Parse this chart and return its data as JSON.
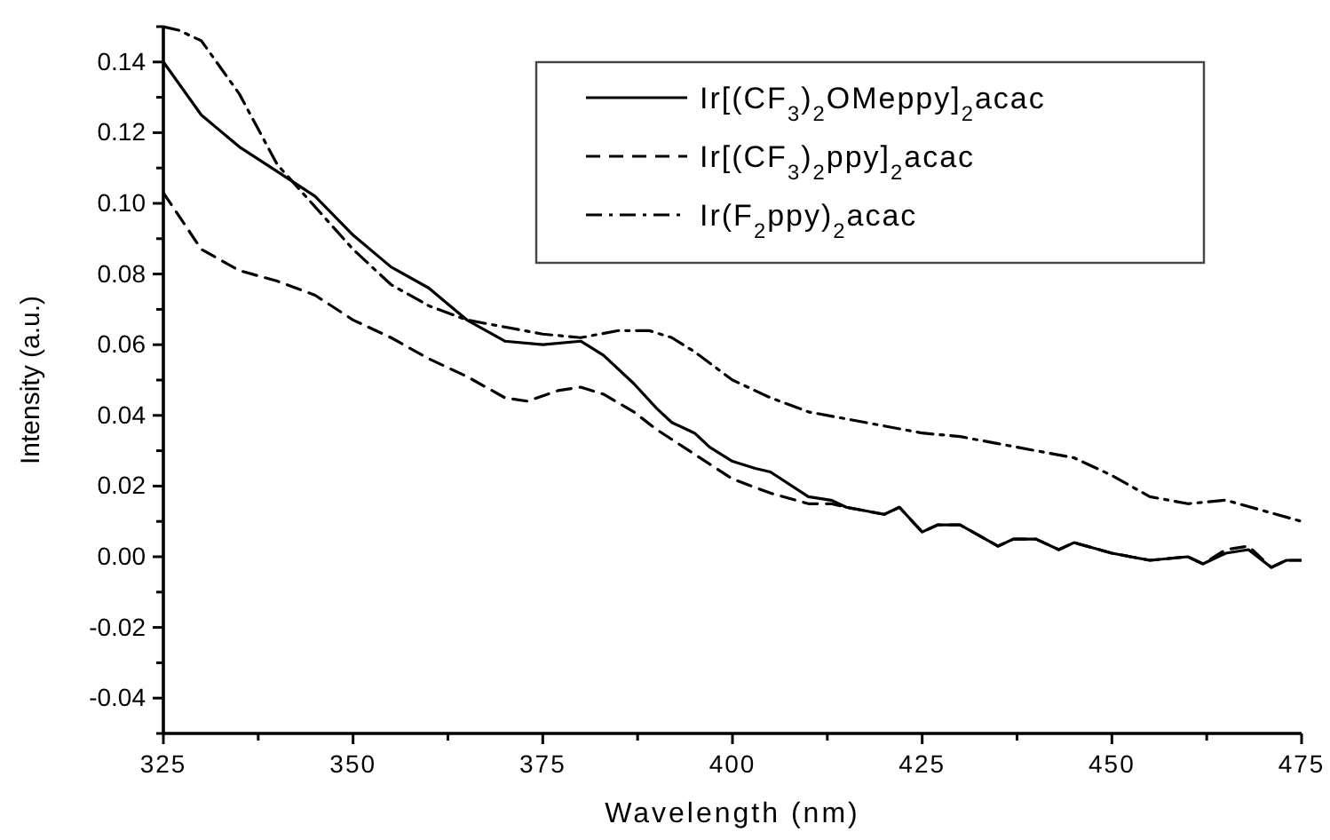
{
  "chart_data": {
    "type": "line",
    "xlabel": "Wavelength (nm)",
    "ylabel": "Intensity (a.u.)",
    "xlim": [
      325,
      475
    ],
    "ylim": [
      -0.05,
      0.15
    ],
    "xticks": [
      {
        "value": 325,
        "label": "325"
      },
      {
        "value": 337.5,
        "label": null
      },
      {
        "value": 350,
        "label": "350"
      },
      {
        "value": 362.5,
        "label": null
      },
      {
        "value": 375,
        "label": "375"
      },
      {
        "value": 387.5,
        "label": null
      },
      {
        "value": 400,
        "label": "400"
      },
      {
        "value": 412.5,
        "label": null
      },
      {
        "value": 425,
        "label": "425"
      },
      {
        "value": 437.5,
        "label": null
      },
      {
        "value": 450,
        "label": "450"
      },
      {
        "value": 462.5,
        "label": null
      },
      {
        "value": 475,
        "label": "475"
      }
    ],
    "yticks": [
      {
        "value": -0.05,
        "label": null
      },
      {
        "value": -0.04,
        "label": "-0.04"
      },
      {
        "value": -0.03,
        "label": null
      },
      {
        "value": -0.02,
        "label": "-0.02"
      },
      {
        "value": -0.01,
        "label": null
      },
      {
        "value": 0,
        "label": "0.00"
      },
      {
        "value": 0.01,
        "label": null
      },
      {
        "value": 0.02,
        "label": "0.02"
      },
      {
        "value": 0.03,
        "label": null
      },
      {
        "value": 0.04,
        "label": "0.04"
      },
      {
        "value": 0.05,
        "label": null
      },
      {
        "value": 0.06,
        "label": "0.06"
      },
      {
        "value": 0.07,
        "label": null
      },
      {
        "value": 0.08,
        "label": "0.08"
      },
      {
        "value": 0.09,
        "label": null
      },
      {
        "value": 0.1,
        "label": "0.10"
      },
      {
        "value": 0.11,
        "label": null
      },
      {
        "value": 0.12,
        "label": "0.12"
      },
      {
        "value": 0.13,
        "label": null
      },
      {
        "value": 0.14,
        "label": "0.14"
      },
      {
        "value": 0.15,
        "label": null
      }
    ],
    "grid": false,
    "legend": "top right",
    "marker": "none",
    "series": [
      {
        "name": "Ir[(CF$_{3}$)$_{2}$OMeppy]$_{2}$acac",
        "color": "#000000",
        "line_style": "solid",
        "x": [
          325,
          330,
          335,
          340,
          345,
          350,
          355,
          360,
          365,
          370,
          375,
          380,
          383,
          387,
          390,
          392,
          395,
          397,
          400,
          403,
          405,
          410,
          413,
          415,
          420,
          422,
          425,
          427,
          430,
          435,
          437,
          440,
          443,
          445,
          450,
          455,
          460,
          462,
          465,
          468,
          471,
          473,
          475
        ],
        "values": [
          0.14,
          0.125,
          0.116,
          0.109,
          0.102,
          0.091,
          0.082,
          0.076,
          0.067,
          0.061,
          0.06,
          0.061,
          0.057,
          0.049,
          0.042,
          0.038,
          0.035,
          0.031,
          0.027,
          0.025,
          0.024,
          0.017,
          0.016,
          0.014,
          0.012,
          0.014,
          0.007,
          0.009,
          0.009,
          0.003,
          0.005,
          0.005,
          0.002,
          0.004,
          0.001,
          -0.001,
          0,
          -0.002,
          0.001,
          0.002,
          -0.003,
          -0.001,
          -0.001
        ]
      },
      {
        "name": "Ir[(CF$_{3}$)$_{2}$ppy]$_{2}$acac",
        "color": "#000000",
        "line_style": "dashed",
        "x": [
          325,
          330,
          335,
          340,
          345,
          350,
          355,
          360,
          365,
          370,
          373,
          377,
          380,
          383,
          387,
          390,
          395,
          400,
          405,
          410,
          413,
          415,
          420,
          422,
          425,
          427,
          430,
          435,
          437,
          440,
          443,
          445,
          450,
          455,
          460,
          462,
          465,
          468,
          471,
          473,
          475
        ],
        "values": [
          0.103,
          0.087,
          0.081,
          0.078,
          0.074,
          0.067,
          0.062,
          0.056,
          0.051,
          0.045,
          0.044,
          0.047,
          0.048,
          0.046,
          0.041,
          0.036,
          0.029,
          0.022,
          0.018,
          0.015,
          0.015,
          0.014,
          0.012,
          0.014,
          0.007,
          0.009,
          0.009,
          0.003,
          0.005,
          0.005,
          0.002,
          0.004,
          0.001,
          -0.001,
          0,
          -0.002,
          0.002,
          0.003,
          -0.003,
          -0.001,
          -0.001
        ]
      },
      {
        "name": "Ir(F$_{2}$ppy)$_{2}$acac",
        "color": "#000000",
        "line_style": "dashdot",
        "x": [
          325,
          327,
          330,
          335,
          340,
          345,
          350,
          355,
          360,
          365,
          370,
          375,
          380,
          385,
          389,
          392,
          395,
          400,
          405,
          410,
          415,
          420,
          425,
          430,
          435,
          440,
          445,
          450,
          455,
          460,
          465,
          470,
          475
        ],
        "values": [
          0.15,
          0.149,
          0.146,
          0.131,
          0.111,
          0.099,
          0.087,
          0.077,
          0.071,
          0.067,
          0.065,
          0.063,
          0.062,
          0.064,
          0.064,
          0.062,
          0.058,
          0.05,
          0.045,
          0.041,
          0.039,
          0.037,
          0.035,
          0.034,
          0.032,
          0.03,
          0.028,
          0.023,
          0.017,
          0.015,
          0.016,
          0.013,
          0.01
        ]
      }
    ]
  }
}
